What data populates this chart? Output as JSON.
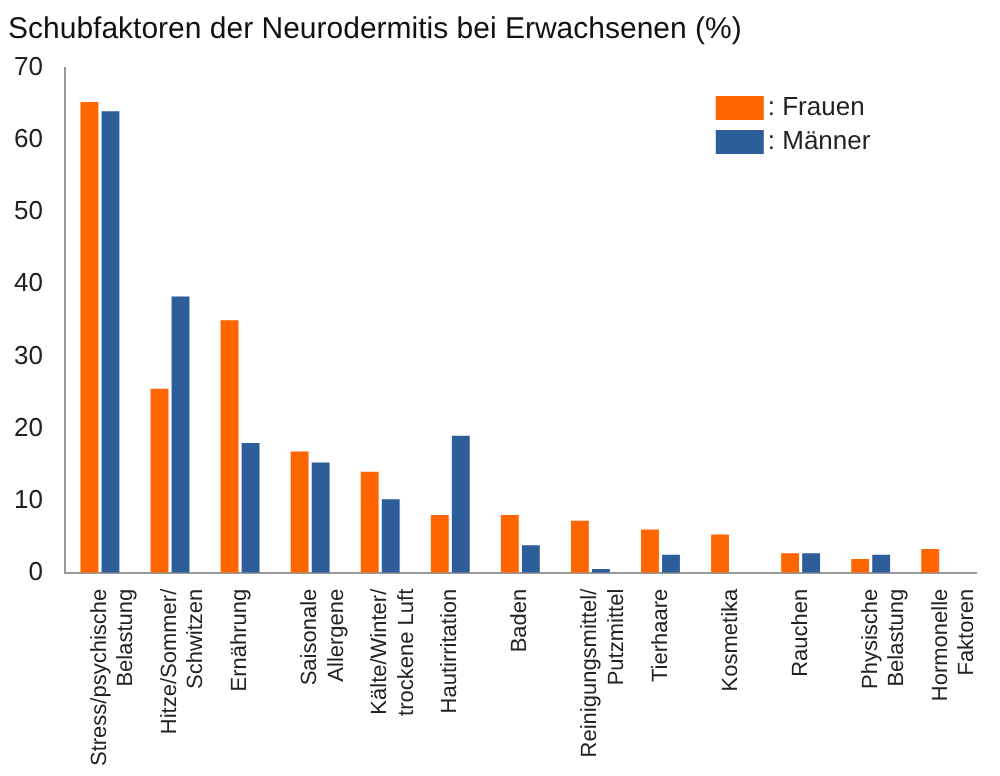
{
  "chart_data": {
    "type": "bar",
    "title": "Schubfaktoren der Neurodermitis bei Erwachsenen (%)",
    "categories": [
      "Stress/psychische\nBelastung",
      "Hitze/Sommer/\nSchwitzen",
      "Ernährung",
      "Saisonale\nAllergene",
      "Kälte/Winter/\ntrockene Luft",
      "Hautirritation",
      "Baden",
      "Reinigungsmittel/\nPutzmittel",
      "Tierhaare",
      "Kosmetika",
      "Rauchen",
      "Physische\nBelastung",
      "Hormonelle\nFaktoren"
    ],
    "series": [
      {
        "name": ": Frauen",
        "color": "#ff6600",
        "values": [
          65.3,
          25.5,
          35,
          16.8,
          14,
          8,
          8,
          7.2,
          6,
          5.3,
          2.7,
          1.9,
          3.3
        ]
      },
      {
        "name": ": Männer",
        "color": "#2e5e9a",
        "values": [
          64,
          38.3,
          18,
          15.3,
          10.2,
          19,
          3.8,
          0.5,
          2.5,
          null,
          2.7,
          2.5,
          null
        ]
      }
    ],
    "ylim": [
      0,
      70
    ],
    "yticks": [
      0,
      10,
      20,
      30,
      40,
      50,
      60,
      70
    ],
    "grid": false,
    "legend": "top right"
  }
}
